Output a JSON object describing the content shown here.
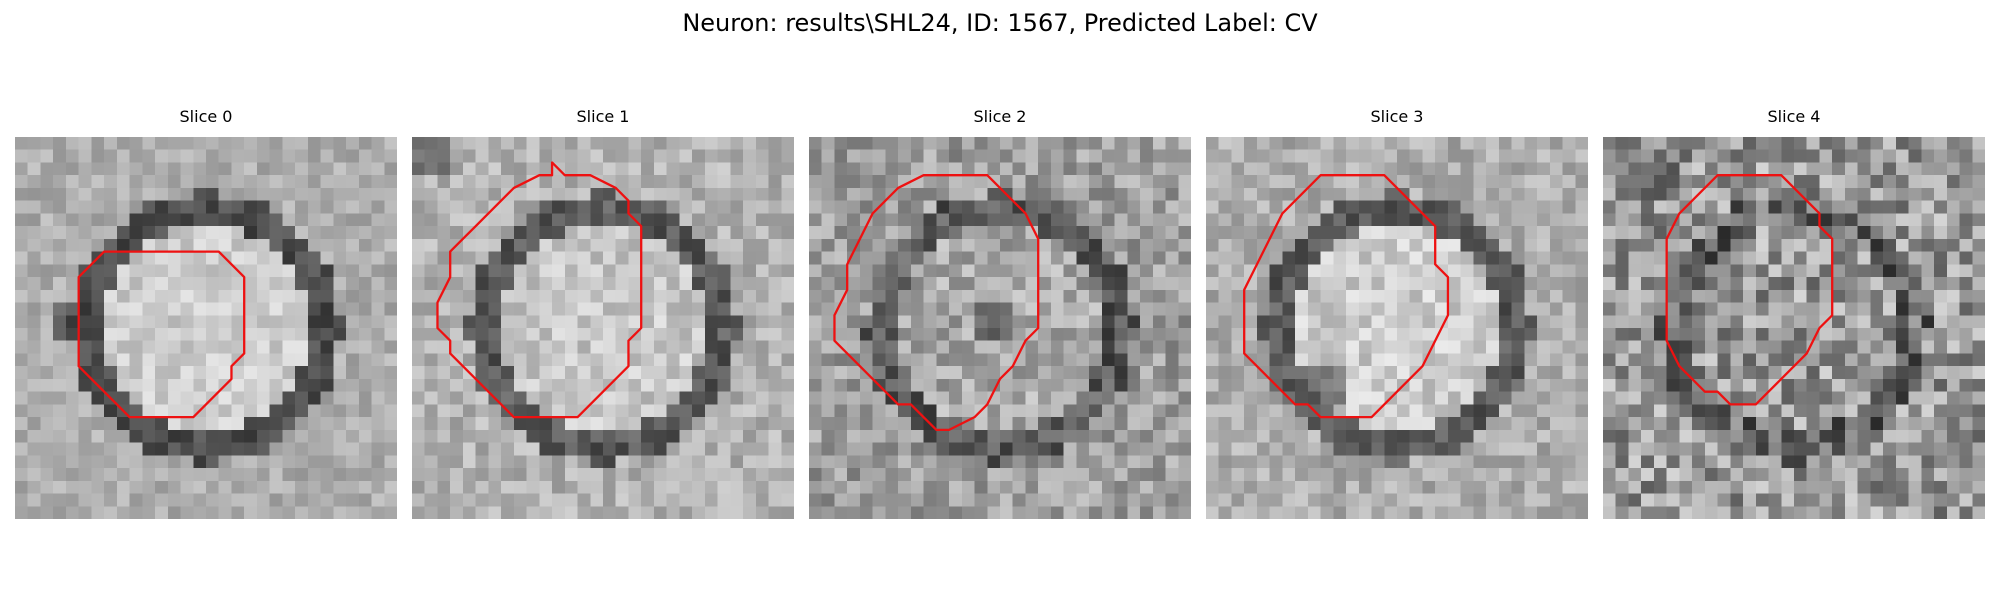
{
  "figure": {
    "title": "Neuron: results\\SHL24, ID: 1567, Predicted Label: CV"
  },
  "panels": [
    {
      "title": "Slice 0",
      "seed": 11,
      "bg": 0.68,
      "ring": 0.3,
      "center": 0.8,
      "noise": 0.1,
      "spot": {
        "x": 4,
        "y": 14,
        "v": 0.15
      }
    },
    {
      "title": "Slice 1",
      "seed": 23,
      "bg": 0.7,
      "ring": 0.35,
      "center": 0.78,
      "noise": 0.12,
      "spot": {
        "x": 1,
        "y": 1,
        "v": 0.2
      }
    },
    {
      "title": "Slice 2",
      "seed": 37,
      "bg": 0.62,
      "ring": 0.35,
      "center": 0.66,
      "noise": 0.16,
      "spot": {
        "x": 14,
        "y": 14,
        "v": 0.15
      }
    },
    {
      "title": "Slice 3",
      "seed": 41,
      "bg": 0.68,
      "ring": 0.35,
      "center": 0.8,
      "noise": 0.12,
      "spot": {
        "x": 9,
        "y": 19,
        "v": 0.2
      }
    },
    {
      "title": "Slice 4",
      "seed": 53,
      "bg": 0.6,
      "ring": 0.4,
      "center": 0.6,
      "noise": 0.24,
      "spot": {
        "x": 4,
        "y": 3,
        "v": 0.2
      }
    }
  ],
  "contours": [
    [
      [
        7,
        9
      ],
      [
        16,
        9
      ],
      [
        18,
        11
      ],
      [
        18,
        13
      ],
      [
        18,
        17
      ],
      [
        17,
        18
      ],
      [
        17,
        19
      ],
      [
        14,
        22
      ],
      [
        9,
        22
      ],
      [
        5,
        18
      ],
      [
        5,
        11
      ]
    ],
    [
      [
        8,
        4
      ],
      [
        10,
        3
      ],
      [
        11,
        3
      ],
      [
        11,
        2
      ],
      [
        12,
        3
      ],
      [
        14,
        3
      ],
      [
        16,
        4
      ],
      [
        17,
        5
      ],
      [
        17,
        6
      ],
      [
        18,
        7
      ],
      [
        18,
        11
      ],
      [
        18,
        15
      ],
      [
        17,
        16
      ],
      [
        17,
        18
      ],
      [
        16,
        19
      ],
      [
        14,
        21
      ],
      [
        13,
        22
      ],
      [
        8,
        22
      ],
      [
        6,
        20
      ],
      [
        5,
        19
      ],
      [
        4,
        18
      ],
      [
        3,
        17
      ],
      [
        3,
        16
      ],
      [
        2,
        15
      ],
      [
        2,
        13
      ],
      [
        3,
        11
      ],
      [
        3,
        9
      ],
      [
        4,
        8
      ],
      [
        5,
        7
      ]
    ],
    [
      [
        9,
        3
      ],
      [
        14,
        3
      ],
      [
        15,
        4
      ],
      [
        16,
        5
      ],
      [
        17,
        6
      ],
      [
        18,
        8
      ],
      [
        18,
        12
      ],
      [
        18,
        15
      ],
      [
        17,
        16
      ],
      [
        16,
        18
      ],
      [
        15,
        19
      ],
      [
        14,
        21
      ],
      [
        13,
        22
      ],
      [
        11,
        23
      ],
      [
        10,
        23
      ],
      [
        9,
        22
      ],
      [
        8,
        21
      ],
      [
        7,
        21
      ],
      [
        6,
        20
      ],
      [
        5,
        19
      ],
      [
        4,
        18
      ],
      [
        3,
        17
      ],
      [
        2,
        16
      ],
      [
        2,
        14
      ],
      [
        3,
        12
      ],
      [
        3,
        10
      ],
      [
        4,
        8
      ],
      [
        5,
        6
      ],
      [
        6,
        5
      ],
      [
        7,
        4
      ]
    ],
    [
      [
        9,
        3
      ],
      [
        14,
        3
      ],
      [
        15,
        4
      ],
      [
        16,
        5
      ],
      [
        17,
        6
      ],
      [
        18,
        7
      ],
      [
        18,
        10
      ],
      [
        19,
        11
      ],
      [
        19,
        14
      ],
      [
        18,
        16
      ],
      [
        17,
        18
      ],
      [
        16,
        19
      ],
      [
        15,
        20
      ],
      [
        14,
        21
      ],
      [
        13,
        22
      ],
      [
        9,
        22
      ],
      [
        8,
        21
      ],
      [
        7,
        21
      ],
      [
        6,
        20
      ],
      [
        5,
        19
      ],
      [
        4,
        18
      ],
      [
        3,
        17
      ],
      [
        3,
        15
      ],
      [
        3,
        12
      ],
      [
        4,
        10
      ],
      [
        5,
        8
      ],
      [
        6,
        6
      ],
      [
        7,
        5
      ],
      [
        8,
        4
      ]
    ],
    [
      [
        9,
        3
      ],
      [
        14,
        3
      ],
      [
        15,
        4
      ],
      [
        16,
        5
      ],
      [
        17,
        6
      ],
      [
        17,
        7
      ],
      [
        18,
        8
      ],
      [
        18,
        12
      ],
      [
        18,
        14
      ],
      [
        17,
        15
      ],
      [
        16,
        17
      ],
      [
        15,
        18
      ],
      [
        14,
        19
      ],
      [
        13,
        20
      ],
      [
        12,
        21
      ],
      [
        11,
        21
      ],
      [
        10,
        21
      ],
      [
        9,
        20
      ],
      [
        8,
        20
      ],
      [
        7,
        19
      ],
      [
        6,
        18
      ],
      [
        5,
        16
      ],
      [
        5,
        12
      ],
      [
        5,
        8
      ],
      [
        6,
        6
      ],
      [
        7,
        5
      ],
      [
        8,
        4
      ]
    ]
  ],
  "colors": {
    "contour": "#ee1111"
  }
}
